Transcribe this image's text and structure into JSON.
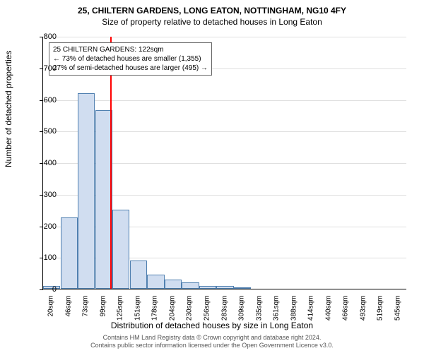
{
  "chart": {
    "type": "histogram",
    "title_main": "25, CHILTERN GARDENS, LONG EATON, NOTTINGHAM, NG10 4FY",
    "title_sub": "Size of property relative to detached houses in Long Eaton",
    "xaxis_label": "Distribution of detached houses by size in Long Eaton",
    "yaxis_label": "Number of detached properties",
    "background_color": "#ffffff",
    "bar_fill": "#d0ddf0",
    "bar_border": "#5080b0",
    "grid_color": "#c0c0c0",
    "ref_line_color": "#ff0000",
    "ref_line_x_value": 122,
    "ylim": [
      0,
      800
    ],
    "ytick_step": 100,
    "yticks": [
      0,
      100,
      200,
      300,
      400,
      500,
      600,
      700,
      800
    ],
    "x_labels": [
      "20sqm",
      "46sqm",
      "73sqm",
      "99sqm",
      "125sqm",
      "151sqm",
      "178sqm",
      "204sqm",
      "230sqm",
      "256sqm",
      "283sqm",
      "309sqm",
      "335sqm",
      "361sqm",
      "388sqm",
      "414sqm",
      "440sqm",
      "466sqm",
      "493sqm",
      "519sqm",
      "545sqm"
    ],
    "values": [
      10,
      225,
      620,
      565,
      250,
      90,
      45,
      30,
      20,
      10,
      8,
      2,
      0,
      0,
      0,
      0,
      0,
      0,
      0,
      0,
      0
    ],
    "bar_width_rel": 0.99,
    "annotation": {
      "lines": [
        "25 CHILTERN GARDENS: 122sqm",
        "← 73% of detached houses are smaller (1,355)",
        "27% of semi-detached houses are larger (495) →"
      ],
      "border_color": "#666666",
      "bg_color": "#ffffff",
      "fontsize": 10
    },
    "title_fontsize": 12,
    "axis_label_fontsize": 12,
    "tick_fontsize": 10
  },
  "footer": {
    "line1": "Contains HM Land Registry data © Crown copyright and database right 2024.",
    "line2": "Contains public sector information licensed under the Open Government Licence v3.0."
  }
}
